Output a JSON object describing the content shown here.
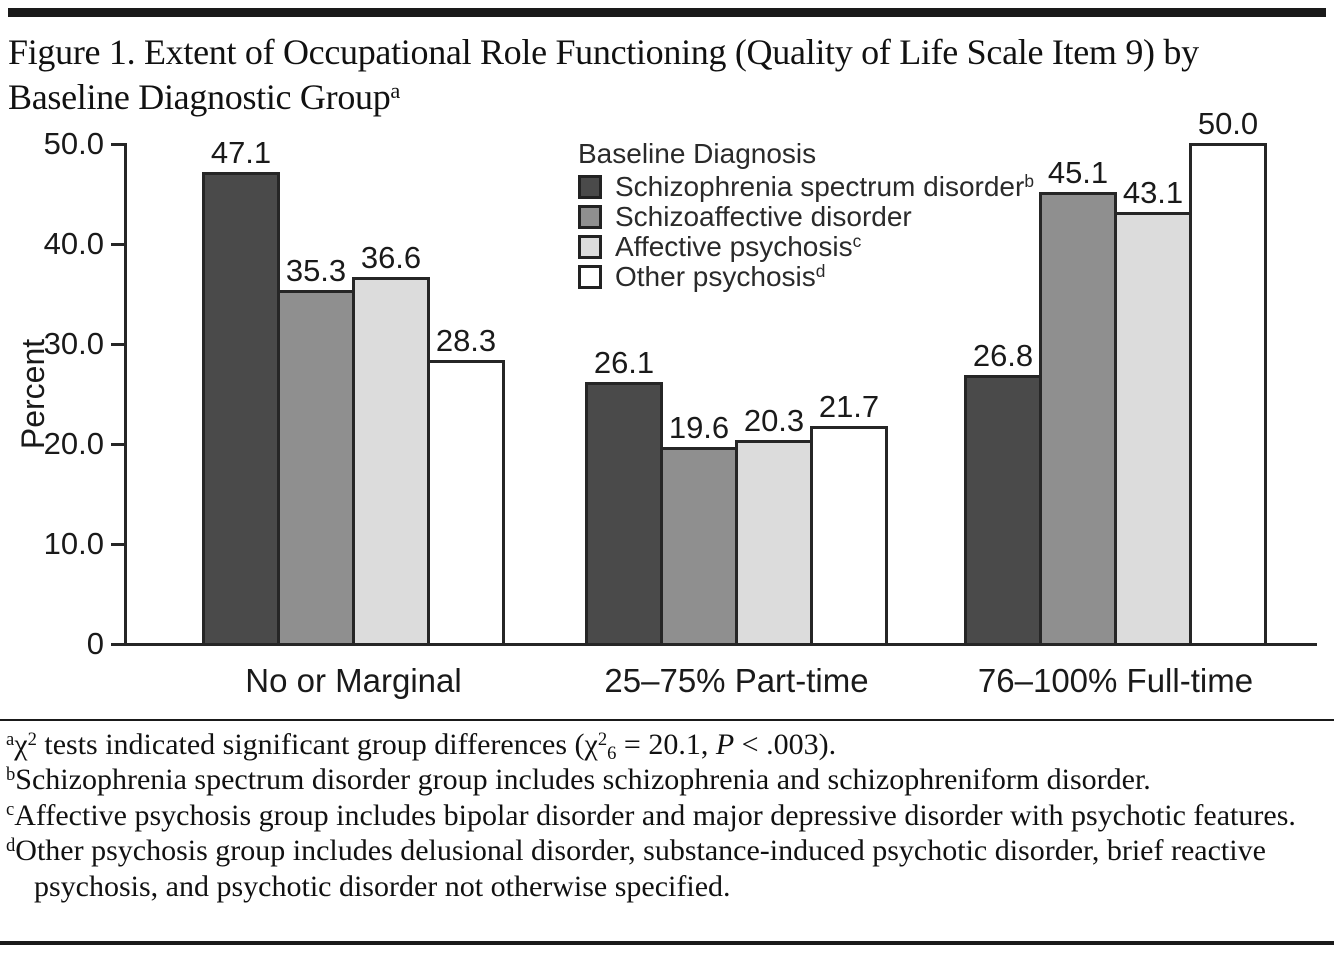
{
  "title": {
    "segments": [
      {
        "t": "Figure 1. Extent of Occupational Role Functioning (Quality of Life Scale Item 9) by",
        "f": "n"
      },
      {
        "t": "",
        "f": "br"
      },
      {
        "t": "Baseline Diagnostic Group",
        "f": "n"
      },
      {
        "t": "a",
        "f": "sup"
      }
    ]
  },
  "chart_data": {
    "type": "bar",
    "title": "",
    "xlabel": "",
    "ylabel": "Percent",
    "ylim": [
      0,
      50
    ],
    "grid": false,
    "yticks": [
      0,
      10,
      20,
      30,
      40,
      50
    ],
    "ytick_labels": [
      "0",
      "10.0",
      "20.0",
      "30.0",
      "40.0",
      "50.0"
    ],
    "categories": [
      "No or Marginal",
      "25–75% Part-time",
      "76–100% Full-time"
    ],
    "series": [
      {
        "name": "Schizophrenia spectrum disorder",
        "name_sup": "b",
        "color": "#4a4a4a",
        "values": [
          47.1,
          26.1,
          26.8
        ]
      },
      {
        "name": "Schizoaffective disorder",
        "name_sup": "",
        "color": "#8f8f8f",
        "values": [
          35.3,
          19.6,
          45.1
        ]
      },
      {
        "name": "Affective psychosis",
        "name_sup": "c",
        "color": "#dcdcdc",
        "values": [
          36.6,
          20.3,
          43.1
        ]
      },
      {
        "name": "Other psychosis",
        "name_sup": "d",
        "color": "#ffffff",
        "values": [
          28.3,
          21.7,
          50.0
        ]
      }
    ],
    "legend_title": "Baseline Diagnosis",
    "legend_position": "upper-center",
    "bar_edge_color": "#262626",
    "value_labels_shown": true
  },
  "footnotes": [
    {
      "id": "a",
      "segments": [
        {
          "t": "a",
          "f": "sup"
        },
        {
          "t": "χ",
          "f": "n"
        },
        {
          "t": "2",
          "f": "sup"
        },
        {
          "t": " tests indicated significant group differences (χ",
          "f": "n"
        },
        {
          "t": "2",
          "f": "sup"
        },
        {
          "t": "6",
          "f": "sub"
        },
        {
          "t": " = 20.1, ",
          "f": "n"
        },
        {
          "t": "P",
          "f": "i"
        },
        {
          "t": " < .003).",
          "f": "n"
        }
      ]
    },
    {
      "id": "b",
      "segments": [
        {
          "t": "b",
          "f": "sup"
        },
        {
          "t": "Schizophrenia spectrum disorder group includes schizophrenia and schizophreniform disorder.",
          "f": "n"
        }
      ]
    },
    {
      "id": "c",
      "segments": [
        {
          "t": "c",
          "f": "sup"
        },
        {
          "t": "Affective psychosis group includes bipolar disorder and major depressive disorder with psychotic features.",
          "f": "n"
        }
      ]
    },
    {
      "id": "d",
      "segments": [
        {
          "t": "d",
          "f": "sup"
        },
        {
          "t": "Other psychosis group includes delusional disorder, substance-induced psychotic disorder, brief reactive psychosis, and psychotic disorder not otherwise specified.",
          "f": "n"
        }
      ]
    }
  ]
}
